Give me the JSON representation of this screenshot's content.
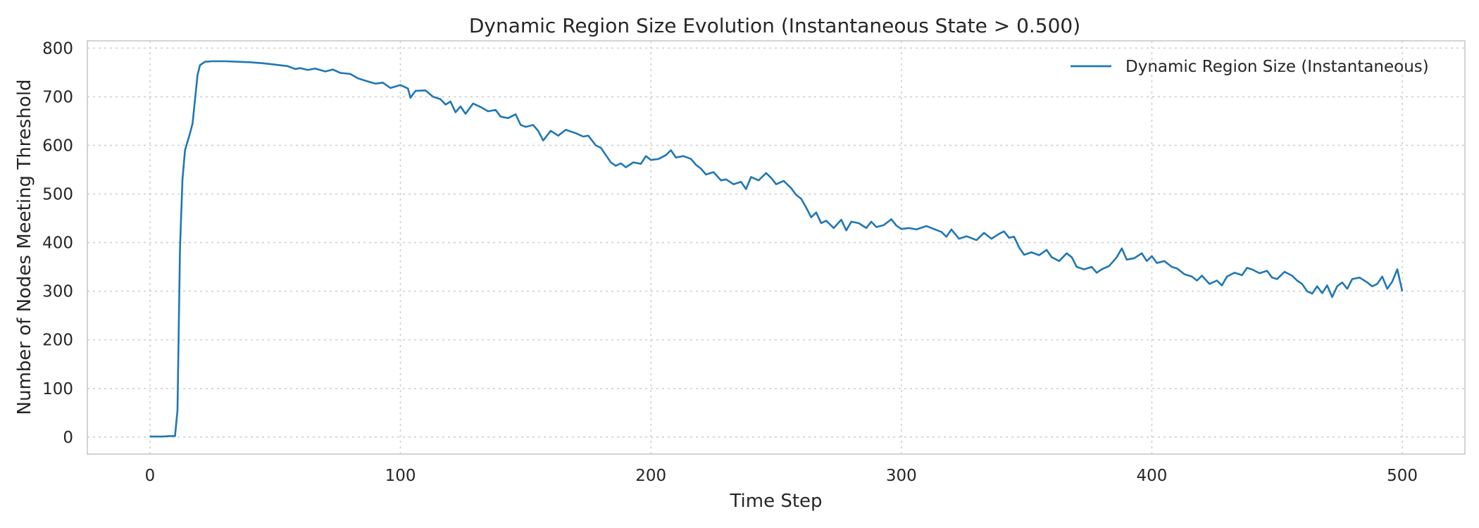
{
  "chart_data": {
    "type": "line",
    "title": "Dynamic Region Size Evolution (Instantaneous State > 0.500)",
    "xlabel": "Time Step",
    "ylabel": "Number of Nodes Meeting Threshold",
    "xlim": [
      -25,
      525
    ],
    "ylim": [
      -35,
      815
    ],
    "xticks": [
      0,
      100,
      200,
      300,
      400,
      500
    ],
    "yticks": [
      0,
      100,
      200,
      300,
      400,
      500,
      600,
      700,
      800
    ],
    "grid": true,
    "legend_position": "top-right",
    "series": [
      {
        "name": "Dynamic Region Size (Instantaneous)",
        "color": "#1f77b4",
        "points": [
          [
            0,
            1
          ],
          [
            5,
            1
          ],
          [
            8,
            2
          ],
          [
            10,
            2
          ],
          [
            11,
            55
          ],
          [
            12,
            390
          ],
          [
            13,
            530
          ],
          [
            14,
            590
          ],
          [
            16,
            625
          ],
          [
            17,
            645
          ],
          [
            19,
            745
          ],
          [
            20,
            765
          ],
          [
            22,
            772
          ],
          [
            25,
            773
          ],
          [
            30,
            773
          ],
          [
            35,
            772
          ],
          [
            40,
            771
          ],
          [
            45,
            769
          ],
          [
            50,
            766
          ],
          [
            55,
            763
          ],
          [
            58,
            757
          ],
          [
            60,
            759
          ],
          [
            63,
            755
          ],
          [
            66,
            758
          ],
          [
            70,
            752
          ],
          [
            73,
            756
          ],
          [
            76,
            749
          ],
          [
            80,
            747
          ],
          [
            83,
            738
          ],
          [
            86,
            733
          ],
          [
            90,
            727
          ],
          [
            93,
            729
          ],
          [
            96,
            718
          ],
          [
            100,
            724
          ],
          [
            103,
            717
          ],
          [
            104,
            698
          ],
          [
            106,
            712
          ],
          [
            110,
            713
          ],
          [
            113,
            700
          ],
          [
            116,
            695
          ],
          [
            118,
            684
          ],
          [
            120,
            690
          ],
          [
            122,
            668
          ],
          [
            124,
            680
          ],
          [
            126,
            665
          ],
          [
            129,
            686
          ],
          [
            132,
            679
          ],
          [
            135,
            670
          ],
          [
            138,
            673
          ],
          [
            140,
            659
          ],
          [
            143,
            656
          ],
          [
            146,
            664
          ],
          [
            148,
            642
          ],
          [
            150,
            638
          ],
          [
            153,
            642
          ],
          [
            155,
            630
          ],
          [
            157,
            610
          ],
          [
            160,
            630
          ],
          [
            163,
            620
          ],
          [
            166,
            632
          ],
          [
            170,
            625
          ],
          [
            173,
            618
          ],
          [
            175,
            620
          ],
          [
            178,
            600
          ],
          [
            180,
            595
          ],
          [
            182,
            580
          ],
          [
            184,
            565
          ],
          [
            186,
            558
          ],
          [
            188,
            563
          ],
          [
            190,
            555
          ],
          [
            193,
            565
          ],
          [
            196,
            562
          ],
          [
            198,
            578
          ],
          [
            200,
            570
          ],
          [
            203,
            572
          ],
          [
            206,
            580
          ],
          [
            208,
            590
          ],
          [
            210,
            575
          ],
          [
            213,
            578
          ],
          [
            216,
            572
          ],
          [
            218,
            560
          ],
          [
            220,
            552
          ],
          [
            222,
            540
          ],
          [
            225,
            545
          ],
          [
            228,
            528
          ],
          [
            230,
            530
          ],
          [
            233,
            520
          ],
          [
            236,
            525
          ],
          [
            238,
            510
          ],
          [
            240,
            535
          ],
          [
            243,
            528
          ],
          [
            246,
            543
          ],
          [
            248,
            533
          ],
          [
            250,
            520
          ],
          [
            253,
            527
          ],
          [
            256,
            512
          ],
          [
            258,
            498
          ],
          [
            260,
            490
          ],
          [
            262,
            472
          ],
          [
            264,
            452
          ],
          [
            266,
            462
          ],
          [
            268,
            440
          ],
          [
            270,
            445
          ],
          [
            273,
            430
          ],
          [
            276,
            447
          ],
          [
            278,
            425
          ],
          [
            280,
            443
          ],
          [
            283,
            440
          ],
          [
            286,
            430
          ],
          [
            288,
            443
          ],
          [
            290,
            432
          ],
          [
            293,
            436
          ],
          [
            296,
            448
          ],
          [
            298,
            435
          ],
          [
            300,
            428
          ],
          [
            303,
            430
          ],
          [
            306,
            427
          ],
          [
            310,
            434
          ],
          [
            313,
            428
          ],
          [
            316,
            422
          ],
          [
            318,
            412
          ],
          [
            320,
            427
          ],
          [
            323,
            408
          ],
          [
            326,
            413
          ],
          [
            330,
            405
          ],
          [
            333,
            420
          ],
          [
            336,
            408
          ],
          [
            339,
            418
          ],
          [
            341,
            423
          ],
          [
            343,
            410
          ],
          [
            345,
            412
          ],
          [
            347,
            390
          ],
          [
            349,
            375
          ],
          [
            352,
            380
          ],
          [
            355,
            374
          ],
          [
            358,
            385
          ],
          [
            360,
            370
          ],
          [
            363,
            362
          ],
          [
            366,
            378
          ],
          [
            368,
            370
          ],
          [
            370,
            350
          ],
          [
            373,
            345
          ],
          [
            376,
            350
          ],
          [
            378,
            338
          ],
          [
            380,
            345
          ],
          [
            383,
            352
          ],
          [
            386,
            370
          ],
          [
            388,
            388
          ],
          [
            390,
            365
          ],
          [
            393,
            368
          ],
          [
            396,
            378
          ],
          [
            398,
            362
          ],
          [
            400,
            372
          ],
          [
            402,
            358
          ],
          [
            405,
            362
          ],
          [
            408,
            350
          ],
          [
            410,
            347
          ],
          [
            413,
            335
          ],
          [
            416,
            330
          ],
          [
            418,
            322
          ],
          [
            420,
            332
          ],
          [
            423,
            315
          ],
          [
            426,
            322
          ],
          [
            428,
            312
          ],
          [
            430,
            330
          ],
          [
            433,
            338
          ],
          [
            436,
            333
          ],
          [
            438,
            348
          ],
          [
            440,
            345
          ],
          [
            443,
            337
          ],
          [
            446,
            342
          ],
          [
            448,
            328
          ],
          [
            450,
            325
          ],
          [
            453,
            340
          ],
          [
            456,
            332
          ],
          [
            458,
            322
          ],
          [
            460,
            315
          ],
          [
            462,
            300
          ],
          [
            464,
            295
          ],
          [
            466,
            310
          ],
          [
            468,
            296
          ],
          [
            470,
            312
          ],
          [
            472,
            288
          ],
          [
            474,
            310
          ],
          [
            476,
            318
          ],
          [
            478,
            305
          ],
          [
            480,
            325
          ],
          [
            483,
            328
          ],
          [
            486,
            318
          ],
          [
            488,
            310
          ],
          [
            490,
            315
          ],
          [
            492,
            330
          ],
          [
            494,
            305
          ],
          [
            496,
            320
          ],
          [
            498,
            345
          ],
          [
            500,
            300
          ]
        ]
      }
    ]
  }
}
